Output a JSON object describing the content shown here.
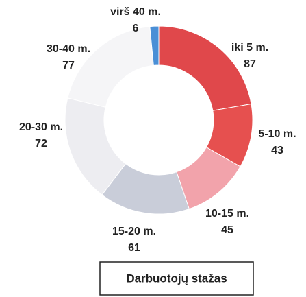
{
  "chart_data": {
    "type": "pie",
    "title": "Darbuotojų stažas",
    "categories": [
      "iki 5 m.",
      "5-10 m.",
      "10-15 m.",
      "15-20 m.",
      "20-30 m.",
      "30-40 m.",
      "virš 40 m."
    ],
    "values": [
      87,
      43,
      45,
      61,
      72,
      77,
      6
    ],
    "colors": [
      "#e0484b",
      "#e6504f",
      "#f2a3ab",
      "#c9cdd9",
      "#ededf1",
      "#f5f5f7",
      "#4a8fd6"
    ]
  }
}
